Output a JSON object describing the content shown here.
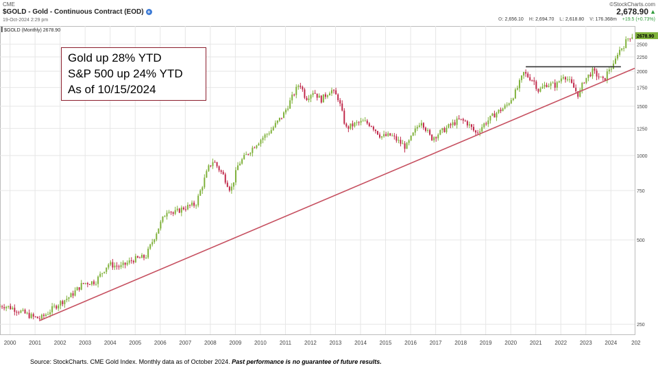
{
  "header": {
    "exchange": "CME",
    "title": "$GOLD - Gold - Continuous Contract (EOD)",
    "info_icon": "info-icon",
    "timestamp": "19-Oct-2024 2:29 pm",
    "brand": "©StockCharts.com",
    "last_price": "2,678.90",
    "last_arrow": "▲",
    "ohlc": {
      "open_label": "O:",
      "open": "2,656.10",
      "high_label": "H:",
      "high": "2,694.70",
      "low_label": "L:",
      "low": "2,618.80",
      "volume_label": "V:",
      "volume": "176.368m",
      "change": "+19.5 (+0.73%)"
    }
  },
  "callout": {
    "line1": "Gold up 28% YTD",
    "line2": "S&P 500 up 24% YTD",
    "line3": "As of 10/15/2024"
  },
  "footer": {
    "source": "Source: StockCharts. CME Gold Index. Monthly data as of October 2024. ",
    "disclaimer": "Past performance is no guarantee of future results."
  },
  "chart_data": {
    "type": "candlestick",
    "scale": "log",
    "frequency": "monthly",
    "series_label": "$GOLD (Monthly) 2678.90",
    "last_value_label": "2678.90",
    "x_ticks": [
      "2000",
      "2001",
      "2002",
      "2003",
      "2004",
      "2005",
      "2006",
      "2007",
      "2008",
      "2009",
      "2010",
      "2011",
      "2012",
      "2013",
      "2014",
      "2015",
      "2016",
      "2017",
      "2018",
      "2019",
      "2020",
      "2021",
      "2022",
      "2023",
      "2024",
      "202"
    ],
    "y_ticks": [
      250,
      500,
      750,
      1000,
      1250,
      1500,
      1750,
      2000,
      2250,
      2500
    ],
    "y_tick_labels": [
      "250",
      "500",
      "750",
      "1000",
      "1250",
      "1500",
      "1750",
      "2000",
      "2250",
      "2500"
    ],
    "ylim": [
      230,
      2900
    ],
    "xlim": [
      1999.6,
      2024.95
    ],
    "up_color": "#7fb13a",
    "down_color": "#c0284a",
    "trendline": {
      "color": "#c65060",
      "start": [
        2001.2,
        258
      ],
      "end": [
        2024.95,
        2050
      ]
    },
    "resistance": {
      "color": "#333333",
      "start": [
        2020.6,
        2075
      ],
      "end": [
        2024.4,
        2075
      ]
    },
    "anchors": [
      [
        1999.6,
        288
      ],
      [
        1999.8,
        292
      ],
      [
        2000.2,
        285
      ],
      [
        2000.6,
        275
      ],
      [
        2001.0,
        265
      ],
      [
        2001.3,
        262
      ],
      [
        2001.6,
        275
      ],
      [
        2002.0,
        295
      ],
      [
        2002.5,
        315
      ],
      [
        2003.0,
        350
      ],
      [
        2003.5,
        355
      ],
      [
        2004.0,
        410
      ],
      [
        2004.5,
        400
      ],
      [
        2005.0,
        425
      ],
      [
        2005.5,
        435
      ],
      [
        2006.0,
        550
      ],
      [
        2006.4,
        650
      ],
      [
        2006.6,
        620
      ],
      [
        2007.0,
        650
      ],
      [
        2007.5,
        670
      ],
      [
        2008.0,
        900
      ],
      [
        2008.2,
        960
      ],
      [
        2008.6,
        850
      ],
      [
        2008.9,
        750
      ],
      [
        2009.2,
        930
      ],
      [
        2009.9,
        1100
      ],
      [
        2010.5,
        1230
      ],
      [
        2011.0,
        1400
      ],
      [
        2011.65,
        1820
      ],
      [
        2011.9,
        1600
      ],
      [
        2012.2,
        1700
      ],
      [
        2012.5,
        1580
      ],
      [
        2012.9,
        1720
      ],
      [
        2013.2,
        1600
      ],
      [
        2013.5,
        1250
      ],
      [
        2013.9,
        1300
      ],
      [
        2014.2,
        1320
      ],
      [
        2014.5,
        1290
      ],
      [
        2014.9,
        1170
      ],
      [
        2015.3,
        1180
      ],
      [
        2015.9,
        1070
      ],
      [
        2016.5,
        1340
      ],
      [
        2016.9,
        1150
      ],
      [
        2017.5,
        1250
      ],
      [
        2018.0,
        1340
      ],
      [
        2018.3,
        1320
      ],
      [
        2018.7,
        1200
      ],
      [
        2019.0,
        1290
      ],
      [
        2019.5,
        1420
      ],
      [
        2019.9,
        1500
      ],
      [
        2020.3,
        1700
      ],
      [
        2020.6,
        1970
      ],
      [
        2021.0,
        1850
      ],
      [
        2021.2,
        1700
      ],
      [
        2021.5,
        1800
      ],
      [
        2021.9,
        1780
      ],
      [
        2022.2,
        1950
      ],
      [
        2022.5,
        1800
      ],
      [
        2022.8,
        1640
      ],
      [
        2023.0,
        1850
      ],
      [
        2023.35,
        2000
      ],
      [
        2023.8,
        1840
      ],
      [
        2024.0,
        2040
      ],
      [
        2024.2,
        2090
      ],
      [
        2024.35,
        2330
      ],
      [
        2024.6,
        2480
      ],
      [
        2024.8,
        2650
      ],
      [
        2024.9,
        2679
      ]
    ]
  }
}
